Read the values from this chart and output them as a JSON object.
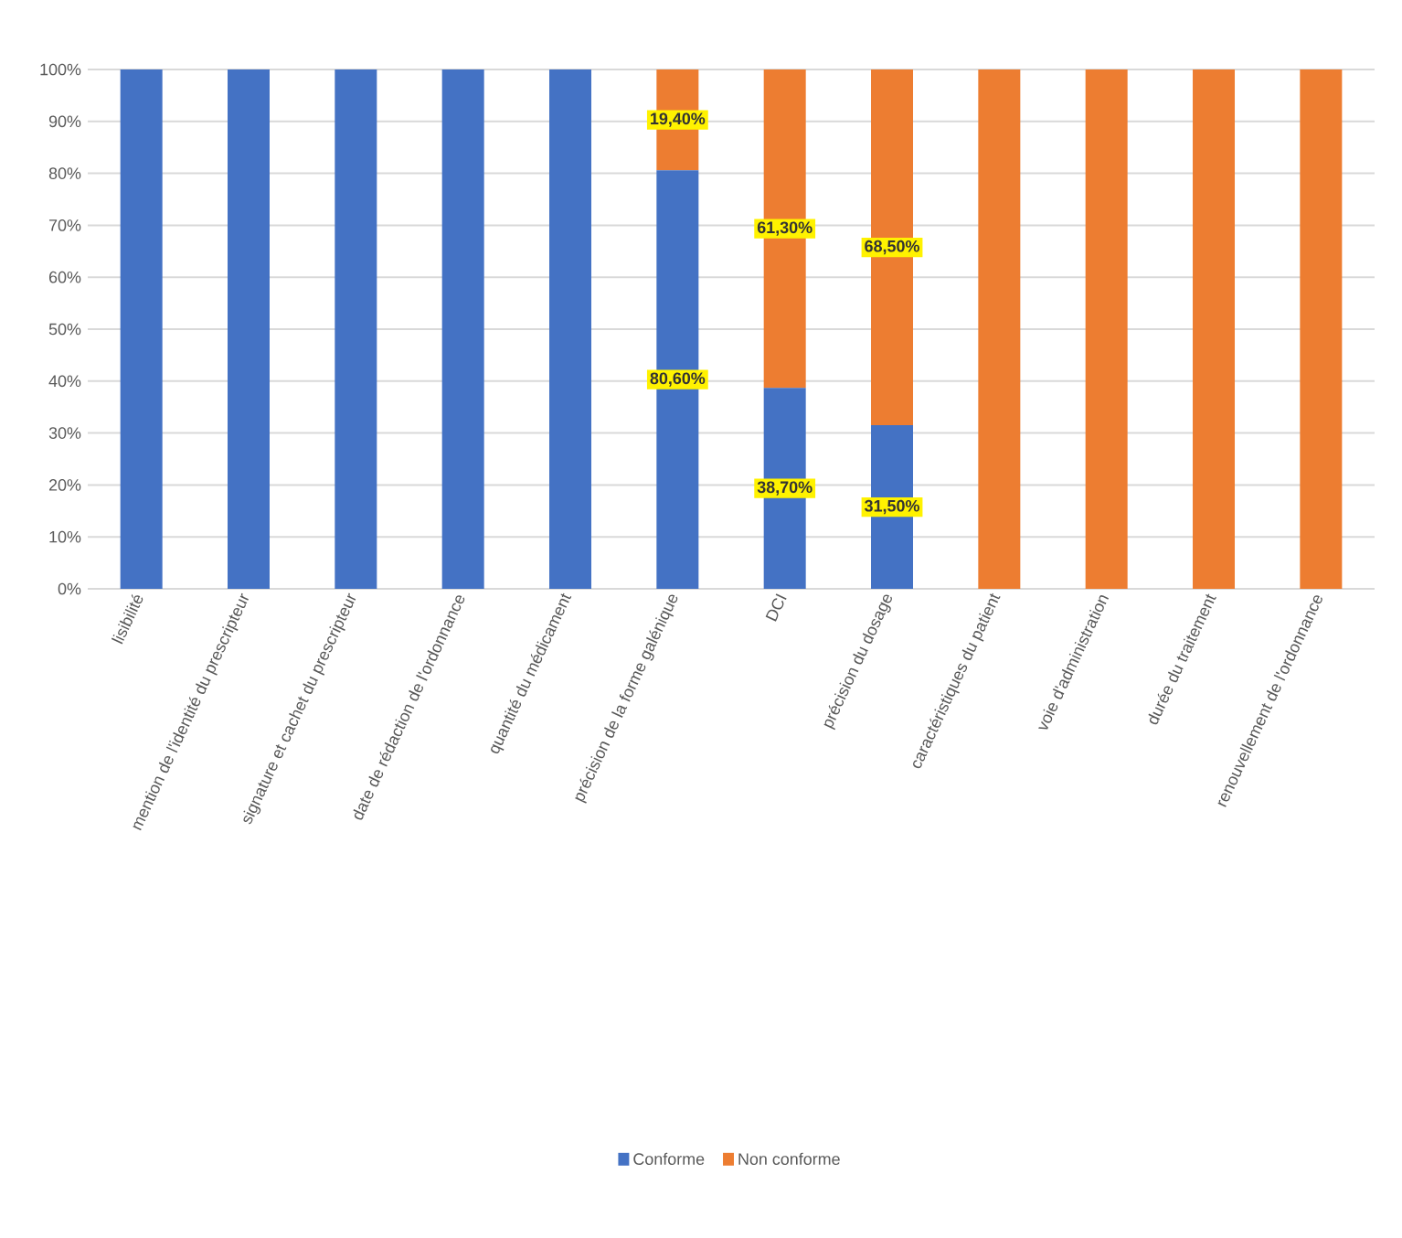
{
  "chart_data": {
    "type": "bar",
    "stacked": true,
    "categories": [
      "lisibilité",
      "mention de l'identité du prescripteur",
      "signature et cachet du prescripteur",
      "date de rédaction de l'ordonnance",
      "quantité du médicament",
      "précision de la forme galénique",
      "DCI",
      "précision du dosage",
      "caractéristiques du patient",
      "voie d'administration",
      "durée du traitement",
      "renouvellement de l'ordonnance"
    ],
    "series": [
      {
        "name": "Conforme",
        "color": "#4472c4",
        "values": [
          100,
          100,
          100,
          100,
          100,
          80.6,
          38.7,
          31.5,
          0,
          0,
          0,
          0
        ],
        "value_labels": [
          null,
          null,
          null,
          null,
          null,
          "80,60%",
          "38,70%",
          "31,50%",
          null,
          null,
          null,
          null
        ]
      },
      {
        "name": "Non conforme",
        "color": "#ed7d31",
        "values": [
          0,
          0,
          0,
          0,
          0,
          19.4,
          61.3,
          68.5,
          100,
          100,
          100,
          100
        ],
        "value_labels": [
          null,
          null,
          null,
          null,
          null,
          "19,40%",
          "61,30%",
          "68,50%",
          null,
          null,
          null,
          null
        ]
      }
    ],
    "ylim": [
      0,
      100
    ],
    "yticks": [
      {
        "value": 0,
        "label": "0%"
      },
      {
        "value": 10,
        "label": "10%"
      },
      {
        "value": 20,
        "label": "20%"
      },
      {
        "value": 30,
        "label": "30%"
      },
      {
        "value": 40,
        "label": "40%"
      },
      {
        "value": 50,
        "label": "50%"
      },
      {
        "value": 60,
        "label": "60%"
      },
      {
        "value": 70,
        "label": "70%"
      },
      {
        "value": 80,
        "label": "80%"
      },
      {
        "value": 90,
        "label": "90%"
      },
      {
        "value": 100,
        "label": "100%"
      }
    ],
    "grid": "y",
    "legend": "bottom"
  }
}
